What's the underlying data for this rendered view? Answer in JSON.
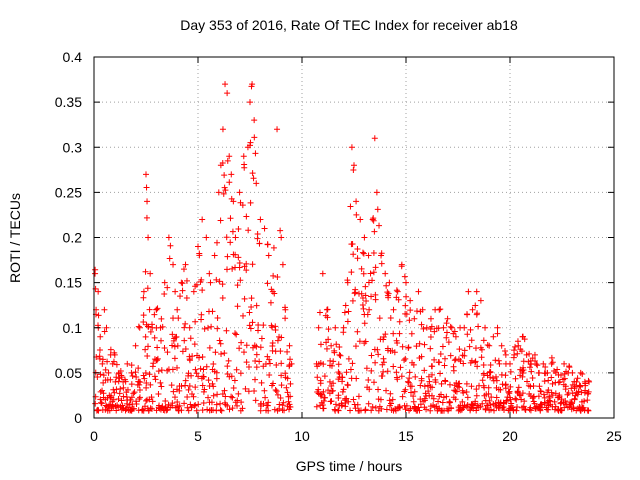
{
  "chart_data": {
    "type": "scatter",
    "title": "Day 353 of 2016, Rate Of TEC Index for receiver ab18",
    "xlabel": "GPS time / hours",
    "ylabel": "ROTI / TECUs",
    "xlim": [
      0,
      25
    ],
    "ylim": [
      0,
      0.4
    ],
    "xticks": [
      "0",
      "5",
      "10",
      "15",
      "20",
      "25"
    ],
    "yticks": [
      "0",
      "0.05",
      "0.1",
      "0.15",
      "0.2",
      "0.25",
      "0.3",
      "0.35",
      "0.4"
    ],
    "grid": true,
    "marker": "+",
    "color": "#ff0000",
    "data_gap_hours": [
      9.6,
      10.6
    ],
    "series": [
      {
        "name": "ROTI",
        "x": [
          0.05,
          0.1,
          0.2,
          0.3,
          0.4,
          0.5,
          0.6,
          0.7,
          0.8,
          0.9,
          1.0,
          1.2,
          1.4,
          1.6,
          1.8,
          2.0,
          2.2,
          2.4,
          2.5,
          2.55,
          2.6,
          2.7,
          2.8,
          3.0,
          3.2,
          3.4,
          3.6,
          3.8,
          3.9,
          4.0,
          4.2,
          4.4,
          4.6,
          4.8,
          5.0,
          5.2,
          5.4,
          5.6,
          5.8,
          6.0,
          6.1,
          6.2,
          6.3,
          6.4,
          6.5,
          6.6,
          6.7,
          6.8,
          7.0,
          7.2,
          7.4,
          7.5,
          7.6,
          7.7,
          7.8,
          8.0,
          8.2,
          8.4,
          8.6,
          8.8,
          9.0,
          9.2,
          9.4,
          9.5,
          10.7,
          10.8,
          11.0,
          11.2,
          11.4,
          11.6,
          11.8,
          12.0,
          12.2,
          12.4,
          12.5,
          12.6,
          12.8,
          13.0,
          13.2,
          13.4,
          13.5,
          13.6,
          13.8,
          14.0,
          14.2,
          14.4,
          14.6,
          14.8,
          15.0,
          15.2,
          15.4,
          15.6,
          15.8,
          16.0,
          16.2,
          16.4,
          16.6,
          16.8,
          17.0,
          17.2,
          17.4,
          17.6,
          17.8,
          18.0,
          18.2,
          18.4,
          18.6,
          18.8,
          19.0,
          19.2,
          19.4,
          19.6,
          19.8,
          20.0,
          20.2,
          20.4,
          20.6,
          20.8,
          21.0,
          21.2,
          21.4,
          21.6,
          21.8,
          22.0,
          22.2,
          22.4,
          22.6,
          22.8,
          23.0,
          23.2,
          23.4,
          23.6,
          23.8
        ],
        "y": [
          0.16,
          0.12,
          0.14,
          0.09,
          0.06,
          0.12,
          0.1,
          0.05,
          0.07,
          0.06,
          0.07,
          0.05,
          0.04,
          0.06,
          0.05,
          0.08,
          0.1,
          0.14,
          0.27,
          0.24,
          0.2,
          0.16,
          0.1,
          0.12,
          0.1,
          0.15,
          0.2,
          0.17,
          0.14,
          0.12,
          0.15,
          0.17,
          0.1,
          0.14,
          0.19,
          0.22,
          0.2,
          0.15,
          0.18,
          0.25,
          0.28,
          0.32,
          0.37,
          0.36,
          0.29,
          0.27,
          0.24,
          0.2,
          0.25,
          0.29,
          0.3,
          0.35,
          0.37,
          0.33,
          0.26,
          0.22,
          0.21,
          0.18,
          0.14,
          0.32,
          0.2,
          0.12,
          0.08,
          0.06,
          0.06,
          0.1,
          0.16,
          0.12,
          0.08,
          0.1,
          0.07,
          0.1,
          0.15,
          0.3,
          0.28,
          0.24,
          0.22,
          0.2,
          0.18,
          0.22,
          0.31,
          0.25,
          0.18,
          0.16,
          0.15,
          0.12,
          0.14,
          0.17,
          0.15,
          0.13,
          0.11,
          0.14,
          0.12,
          0.1,
          0.11,
          0.12,
          0.12,
          0.1,
          0.11,
          0.1,
          0.09,
          0.1,
          0.1,
          0.14,
          0.12,
          0.14,
          0.13,
          0.1,
          0.08,
          0.09,
          0.1,
          0.08,
          0.07,
          0.06,
          0.07,
          0.08,
          0.09,
          0.07,
          0.06,
          0.07,
          0.05,
          0.06,
          0.05,
          0.06,
          0.05,
          0.04,
          0.06,
          0.05,
          0.05,
          0.04,
          0.05,
          0.04,
          0.04
        ]
      }
    ]
  }
}
